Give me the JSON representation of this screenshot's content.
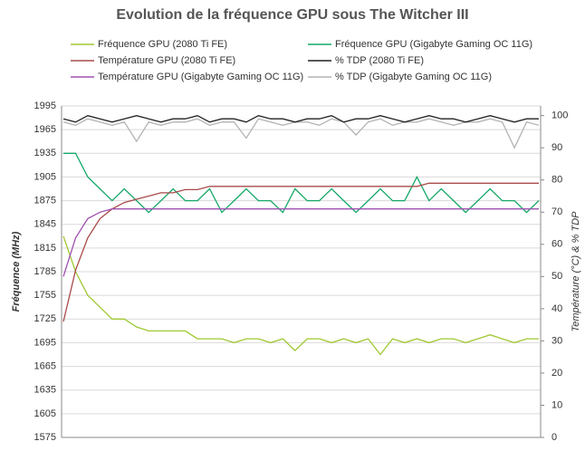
{
  "chart_data": {
    "type": "line",
    "title": "Evolution de la fréquence GPU sous The Witcher III",
    "y_label": "Fréquence (MHz)",
    "y2_label": "Température  (°C) & % TDP",
    "ylim": [
      1575,
      1995
    ],
    "yticks": [
      1575,
      1605,
      1635,
      1665,
      1695,
      1725,
      1755,
      1785,
      1815,
      1845,
      1875,
      1905,
      1935,
      1965,
      1995
    ],
    "y2lim": [
      0,
      103
    ],
    "y2ticks": [
      0,
      10,
      20,
      30,
      40,
      50,
      60,
      70,
      80,
      90,
      100
    ],
    "grid": true,
    "series": [
      {
        "name": "% TDP (Gigabyte Gaming OC 11G)",
        "color": "#b4b4b4",
        "axis": "y2",
        "values": [
          98,
          97,
          99,
          98,
          97,
          98,
          92,
          98,
          97,
          98,
          98,
          99,
          97,
          98,
          98,
          93,
          99,
          98,
          97,
          98,
          98,
          97,
          99,
          98,
          94,
          98,
          99,
          97,
          98,
          98,
          99,
          98,
          97,
          98,
          98,
          99,
          98,
          90,
          98,
          97
        ]
      },
      {
        "name": "% TDP (2080 Ti FE)",
        "color": "#222222",
        "axis": "y2",
        "values": [
          99,
          98,
          100,
          99,
          98,
          99,
          100,
          99,
          98,
          99,
          99,
          100,
          98,
          99,
          99,
          98,
          100,
          99,
          99,
          98,
          99,
          99,
          100,
          98,
          99,
          99,
          100,
          99,
          98,
          99,
          100,
          99,
          99,
          98,
          99,
          100,
          99,
          98,
          99,
          99
        ]
      },
      {
        "name": "Fréquence GPU (2080 Ti FE)",
        "color": "#9fc832",
        "values": [
          1830,
          1785,
          1755,
          1740,
          1725,
          1725,
          1715,
          1710,
          1710,
          1710,
          1710,
          1700,
          1700,
          1700,
          1695,
          1700,
          1700,
          1695,
          1700,
          1685,
          1700,
          1700,
          1695,
          1700,
          1695,
          1700,
          1680,
          1700,
          1695,
          1700,
          1695,
          1700,
          1700,
          1695,
          1700,
          1705,
          1700,
          1695,
          1700,
          1700
        ]
      },
      {
        "name": "Fréquence GPU (Gigabyte Gaming OC 11G)",
        "color": "#17a868",
        "values": [
          1935,
          1935,
          1905,
          1890,
          1875,
          1890,
          1875,
          1860,
          1875,
          1890,
          1875,
          1875,
          1890,
          1860,
          1875,
          1890,
          1875,
          1875,
          1860,
          1890,
          1875,
          1875,
          1890,
          1875,
          1860,
          1875,
          1890,
          1875,
          1875,
          1905,
          1875,
          1890,
          1875,
          1860,
          1875,
          1890,
          1875,
          1875,
          1860,
          1875
        ]
      },
      {
        "name": "Température GPU  (2080 Ti FE)",
        "color": "#a84a4a",
        "axis": "y2",
        "values": [
          36,
          52,
          62,
          68,
          71,
          73,
          74,
          75,
          76,
          76,
          77,
          77,
          78,
          78,
          78,
          78,
          78,
          78,
          78,
          78,
          78,
          78,
          78,
          78,
          78,
          78,
          78,
          78,
          78,
          78,
          79,
          79,
          79,
          79,
          79,
          79,
          79,
          79,
          79,
          79
        ]
      },
      {
        "name": "Température GPU  (Gigabyte Gaming OC 11G)",
        "color": "#a050b0",
        "axis": "y2",
        "values": [
          50,
          62,
          68,
          70,
          71,
          71,
          71,
          71,
          71,
          71,
          71,
          71,
          71,
          71,
          71,
          71,
          71,
          71,
          71,
          71,
          71,
          71,
          71,
          71,
          71,
          71,
          71,
          71,
          71,
          71,
          71,
          71,
          71,
          71,
          71,
          71,
          71,
          71,
          71,
          71
        ]
      }
    ],
    "legend_order": [
      2,
      3,
      4,
      1,
      5,
      0
    ]
  }
}
